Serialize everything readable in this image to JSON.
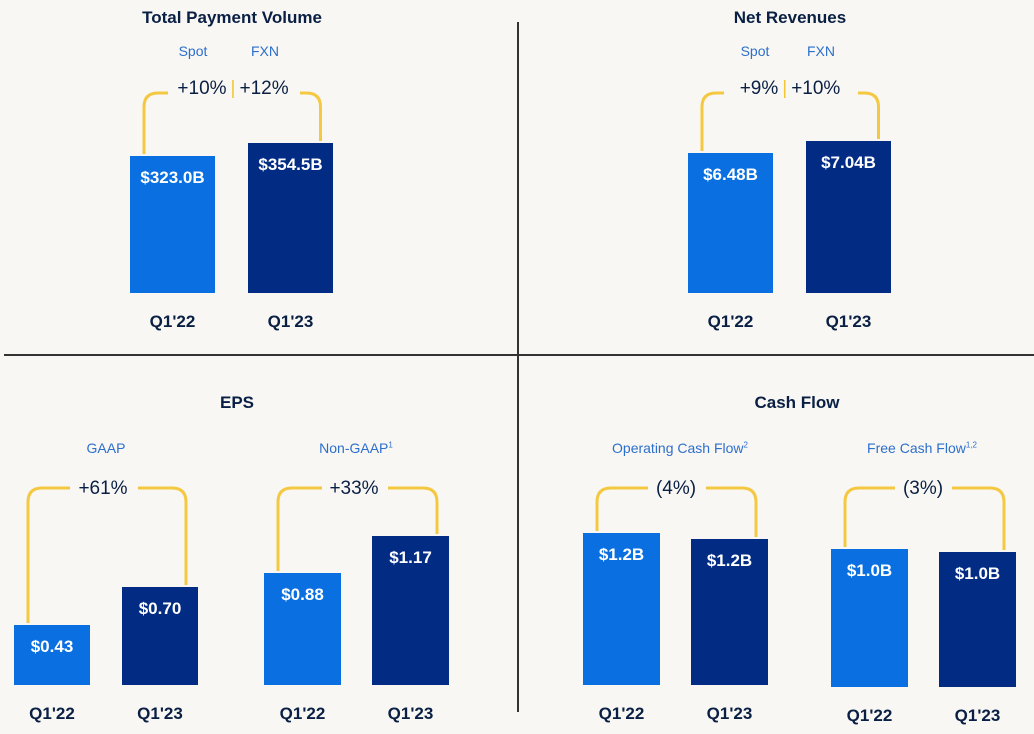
{
  "colors": {
    "spot": "#0a6fe0",
    "fxn": "#022b84",
    "bracket": "#f5c842",
    "background": "#f8f7f3"
  },
  "chart_data": [
    {
      "type": "bar",
      "title": "Total Payment Volume",
      "labels": {
        "spot": "Spot",
        "fxn": "FXN"
      },
      "categories": [
        "Q1'22",
        "Q1'23"
      ],
      "values": [
        323.0,
        354.5
      ],
      "value_labels": [
        "$323.0B",
        "$354.5B"
      ],
      "growth": {
        "spot": "+10%",
        "fxn": "+12%"
      }
    },
    {
      "type": "bar",
      "title": "Net Revenues",
      "labels": {
        "spot": "Spot",
        "fxn": "FXN"
      },
      "categories": [
        "Q1'22",
        "Q1'23"
      ],
      "values": [
        6.48,
        7.04
      ],
      "value_labels": [
        "$6.48B",
        "$7.04B"
      ],
      "growth": {
        "spot": "+9%",
        "fxn": "+10%"
      }
    },
    {
      "type": "bar",
      "title": "EPS",
      "groups": [
        {
          "label": "GAAP",
          "sup": "",
          "categories": [
            "Q1'22",
            "Q1'23"
          ],
          "values": [
            0.43,
            0.7
          ],
          "value_labels": [
            "$0.43",
            "$0.70"
          ],
          "growth": "+61%"
        },
        {
          "label": "Non-GAAP",
          "sup": "1",
          "categories": [
            "Q1'22",
            "Q1'23"
          ],
          "values": [
            0.88,
            1.17
          ],
          "value_labels": [
            "$0.88",
            "$1.17"
          ],
          "growth": "+33%"
        }
      ]
    },
    {
      "type": "bar",
      "title": "Cash Flow",
      "groups": [
        {
          "label": "Operating Cash Flow",
          "sup": "2",
          "categories": [
            "Q1'22",
            "Q1'23"
          ],
          "values": [
            1.2,
            1.2
          ],
          "value_labels": [
            "$1.2B",
            "$1.2B"
          ],
          "growth": "(4%)"
        },
        {
          "label": "Free Cash Flow",
          "sup": "1,2",
          "categories": [
            "Q1'22",
            "Q1'23"
          ],
          "values": [
            1.0,
            1.0
          ],
          "value_labels": [
            "$1.0B",
            "$1.0B"
          ],
          "growth": "(3%)"
        }
      ]
    }
  ]
}
